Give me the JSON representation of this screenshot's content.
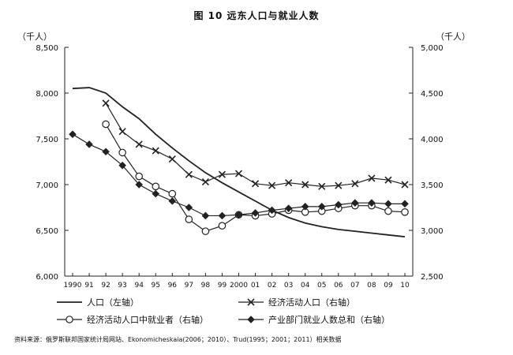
{
  "chart_data": {
    "type": "line",
    "title": "图 10   远东人口与就业人数",
    "left_unit": "（千人）",
    "right_unit": "（千人）",
    "x_labels": [
      "1990",
      "91",
      "92",
      "93",
      "94",
      "95",
      "96",
      "97",
      "98",
      "99",
      "2000",
      "01",
      "02",
      "03",
      "04",
      "05",
      "06",
      "07",
      "08",
      "09",
      "10"
    ],
    "left_axis": {
      "ticks": [
        6000,
        6500,
        7000,
        7500,
        8000,
        8500
      ],
      "ylim": [
        6000,
        8500
      ]
    },
    "right_axis": {
      "ticks": [
        2500,
        3000,
        3500,
        4000,
        4500,
        5000
      ],
      "ylim": [
        2500,
        5000
      ]
    },
    "series": [
      {
        "name": "人口（左轴）",
        "axis": "left",
        "marker": "none",
        "x": [
          0,
          1,
          2,
          3,
          4,
          5,
          6,
          7,
          8,
          9,
          10,
          11,
          12,
          13,
          14,
          15,
          16,
          17,
          18,
          19,
          20
        ],
        "values": [
          8050,
          8060,
          8000,
          7850,
          7720,
          7550,
          7400,
          7260,
          7130,
          7020,
          6920,
          6820,
          6720,
          6640,
          6580,
          6540,
          6510,
          6490,
          6470,
          6450,
          6430
        ]
      },
      {
        "name": "经济活动人口（右轴）",
        "axis": "right",
        "marker": "x",
        "x": [
          2,
          3,
          4,
          5,
          6,
          7,
          8,
          9,
          10,
          11,
          12,
          13,
          14,
          15,
          16,
          17,
          18,
          19,
          20
        ],
        "values": [
          4390,
          4080,
          3940,
          3870,
          3780,
          3610,
          3530,
          3610,
          3620,
          3510,
          3490,
          3520,
          3500,
          3480,
          3490,
          3510,
          3570,
          3550,
          3500
        ]
      },
      {
        "name": "经济活动人口中就业者（右轴）",
        "axis": "right",
        "marker": "circle",
        "x": [
          2,
          3,
          4,
          5,
          6,
          7,
          8,
          9,
          10,
          11,
          12,
          13,
          14,
          15,
          16,
          17,
          18,
          19,
          20
        ],
        "values": [
          4160,
          3850,
          3590,
          3480,
          3400,
          3120,
          2990,
          3050,
          3170,
          3160,
          3180,
          3220,
          3200,
          3210,
          3240,
          3270,
          3270,
          3210,
          3200
        ]
      },
      {
        "name": "产业部门就业人数总和（右轴）",
        "axis": "right",
        "marker": "diamond",
        "x": [
          0,
          1,
          2,
          3,
          4,
          5,
          6,
          7,
          8,
          9,
          10,
          11,
          12,
          13,
          14,
          15,
          16,
          17,
          18,
          19,
          20
        ],
        "values": [
          4050,
          3940,
          3860,
          3710,
          3500,
          3400,
          3320,
          3250,
          3160,
          3160,
          3170,
          3190,
          3220,
          3240,
          3260,
          3260,
          3280,
          3300,
          3300,
          3290,
          3290
        ]
      }
    ]
  },
  "source": "资料来源：俄罗斯联邦国家统计局网站、Ekonomicheskaia(2006；2010）、Trud(1995；2001；2011）相关数据"
}
